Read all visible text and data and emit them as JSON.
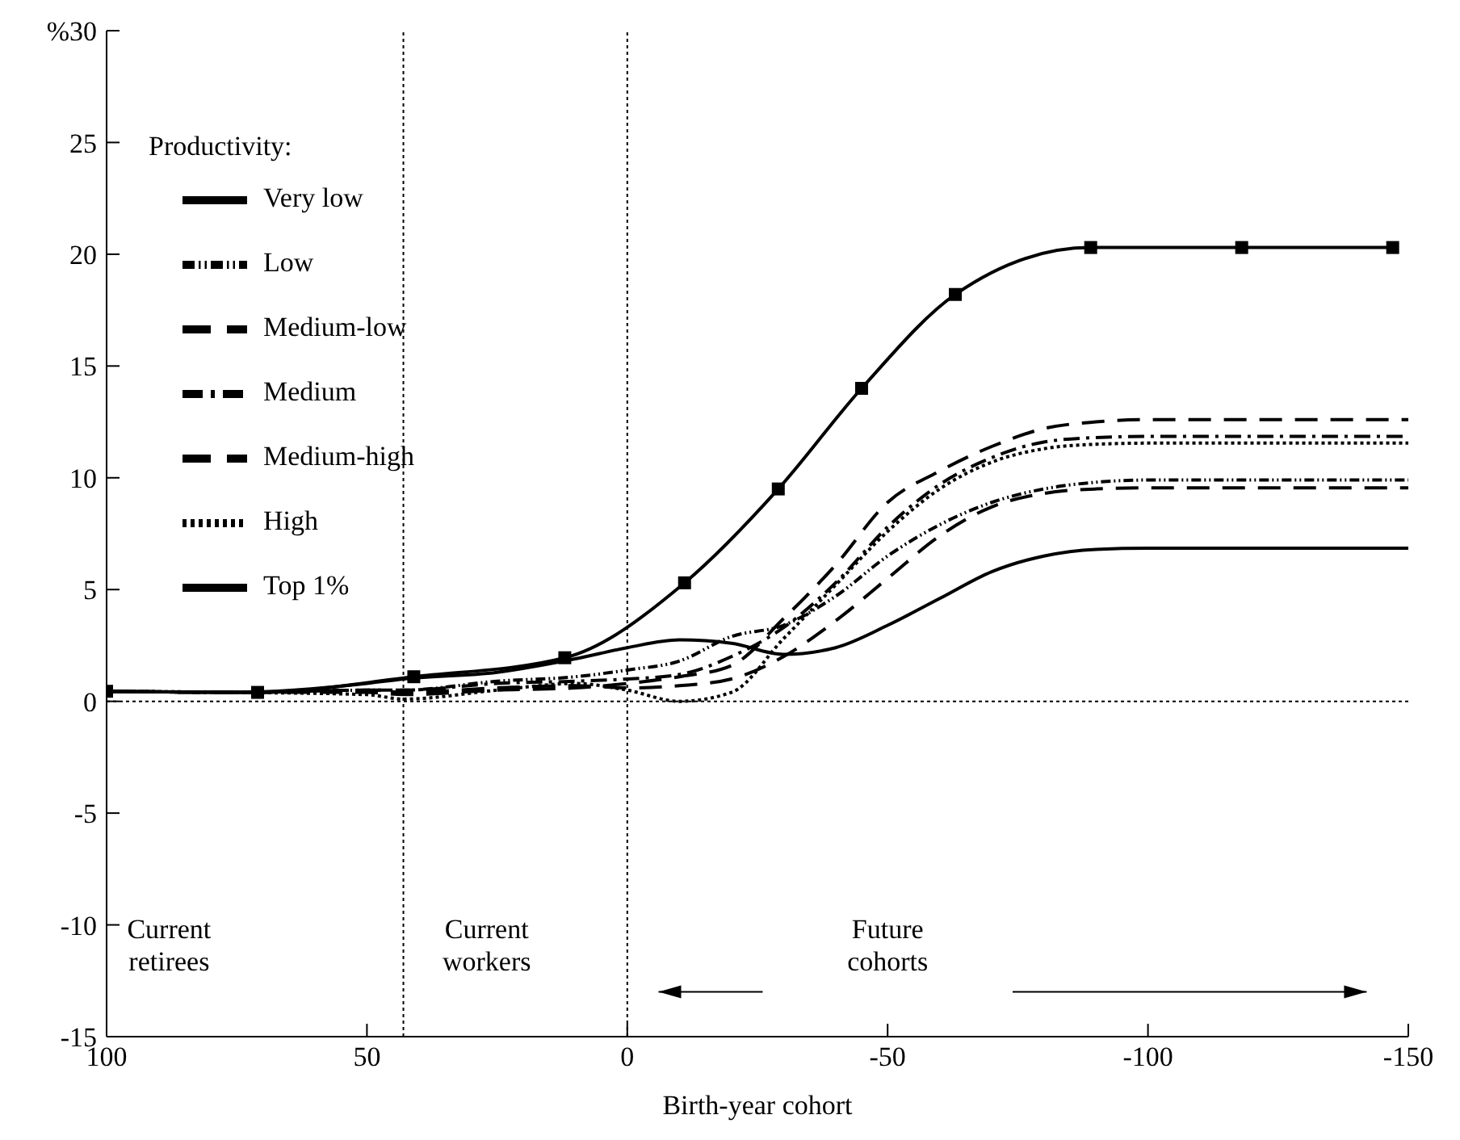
{
  "chart_data": {
    "type": "line",
    "xlabel": "Birth-year cohort",
    "legend_title": "Productivity:",
    "legend": "top left",
    "xlim": [
      100,
      -150
    ],
    "xticks": [
      100,
      50,
      0,
      -50,
      -100,
      -150
    ],
    "ylim": [
      -15,
      30
    ],
    "yticks": [
      -15,
      -10,
      -5,
      0,
      5,
      10,
      15,
      20,
      25,
      {
        "value": 30,
        "label": "%30"
      }
    ],
    "ref_lines": [
      {
        "axis": "x",
        "value": 43,
        "line_style": "dotted"
      },
      {
        "axis": "x",
        "value": 0,
        "line_style": "dotted"
      },
      {
        "axis": "y",
        "value": 0,
        "line_style": "dotted"
      }
    ],
    "annotations": [
      "Current\nretirees",
      "Current\nworkers",
      "Future\ncohorts"
    ],
    "series": [
      {
        "name": "Very low",
        "color": "#000000",
        "line_style": "solid",
        "x": [
          100,
          75,
          50,
          43,
          25,
          10,
          0,
          -10,
          -20,
          -30,
          -40,
          -50,
          -60,
          -70,
          -80,
          -90,
          -100,
          -150
        ],
        "values": [
          0.45,
          0.4,
          0.8,
          1.0,
          1.3,
          1.9,
          2.4,
          2.75,
          2.6,
          2.1,
          2.4,
          3.4,
          4.6,
          5.8,
          6.5,
          6.8,
          6.85,
          6.85
        ]
      },
      {
        "name": "Low",
        "color": "#000000",
        "line_style": "dashdotdot",
        "x": [
          100,
          75,
          50,
          43,
          25,
          10,
          0,
          -10,
          -20,
          -30,
          -40,
          -50,
          -60,
          -70,
          -80,
          -90,
          -100,
          -150
        ],
        "values": [
          0.45,
          0.4,
          0.5,
          0.5,
          0.9,
          1.1,
          1.4,
          1.8,
          2.9,
          3.4,
          4.7,
          6.5,
          7.9,
          8.9,
          9.5,
          9.8,
          9.9,
          9.9
        ]
      },
      {
        "name": "Medium-low",
        "color": "#000000",
        "line_style": "dashed",
        "x": [
          100,
          75,
          50,
          43,
          25,
          10,
          0,
          -10,
          -20,
          -30,
          -40,
          -50,
          -60,
          -70,
          -80,
          -90,
          -100,
          -150
        ],
        "values": [
          0.45,
          0.4,
          0.5,
          0.4,
          0.6,
          0.7,
          0.6,
          0.7,
          1.0,
          2.0,
          3.6,
          5.5,
          7.4,
          8.7,
          9.3,
          9.5,
          9.55,
          9.55
        ]
      },
      {
        "name": "Medium",
        "color": "#000000",
        "line_style": "dashdot",
        "x": [
          100,
          75,
          50,
          43,
          25,
          10,
          0,
          -10,
          -20,
          -30,
          -40,
          -50,
          -60,
          -70,
          -80,
          -90,
          -100,
          -150
        ],
        "values": [
          0.45,
          0.4,
          0.5,
          0.5,
          0.8,
          0.9,
          1.0,
          1.2,
          2.0,
          3.3,
          5.3,
          7.8,
          9.7,
          10.9,
          11.6,
          11.8,
          11.85,
          11.85
        ]
      },
      {
        "name": "Medium-high",
        "color": "#000000",
        "line_style": "dashed",
        "x": [
          100,
          75,
          50,
          43,
          25,
          10,
          0,
          -10,
          -20,
          -30,
          -40,
          -50,
          -60,
          -70,
          -80,
          -90,
          -100,
          -150
        ],
        "values": [
          0.45,
          0.4,
          0.4,
          0.3,
          0.5,
          0.6,
          0.8,
          1.1,
          1.6,
          3.7,
          6.1,
          8.9,
          10.3,
          11.4,
          12.2,
          12.5,
          12.6,
          12.6
        ]
      },
      {
        "name": "High",
        "color": "#000000",
        "line_style": "dotted",
        "x": [
          100,
          75,
          50,
          43,
          25,
          10,
          0,
          -10,
          -20,
          -30,
          -40,
          -50,
          -60,
          -70,
          -80,
          -90,
          -100,
          -150
        ],
        "values": [
          0.45,
          0.4,
          0.3,
          0.1,
          0.5,
          0.8,
          0.5,
          0.0,
          0.4,
          2.8,
          5.2,
          7.6,
          9.5,
          10.7,
          11.3,
          11.5,
          11.55,
          11.55
        ]
      },
      {
        "name": "Top 1%",
        "color": "#000000",
        "line_style": "solid",
        "marker": "square",
        "x": [
          100,
          71,
          41,
          12,
          -11,
          -29,
          -45,
          -63,
          -89,
          -118,
          -147
        ],
        "values": [
          0.45,
          0.4,
          1.1,
          1.95,
          5.3,
          9.5,
          14.0,
          18.2,
          20.3,
          20.3,
          20.3
        ]
      }
    ]
  }
}
